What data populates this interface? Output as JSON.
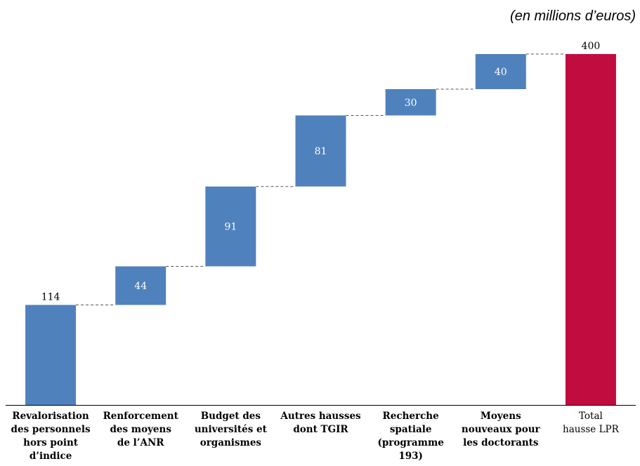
{
  "note": "(en millions d’euros)",
  "chart_data": {
    "type": "waterfall",
    "categories": [
      [
        "Revalorisation",
        "des personnels",
        "hors point",
        "d’indice"
      ],
      [
        "Renforcement",
        "des moyens",
        "de l’ANR"
      ],
      [
        "Budget des",
        "universités et",
        "organismes"
      ],
      [
        "Autres hausses",
        "dont TGIR"
      ],
      [
        "Recherche",
        "spatiale",
        "(programme",
        "193)"
      ],
      [
        "Moyens",
        "nouveaux pour",
        "les doctorants"
      ],
      [
        "Total",
        "hausse LPR"
      ]
    ],
    "values": [
      114,
      44,
      91,
      81,
      30,
      40,
      400
    ],
    "labels": [
      "114",
      "44",
      "91",
      "81",
      "30",
      "40",
      "400"
    ],
    "is_total": [
      false,
      false,
      false,
      false,
      false,
      false,
      true
    ],
    "colors": {
      "increment": "#4f81bd",
      "total": "#c00c3f",
      "connector": "#555555"
    },
    "ylim": [
      0,
      400
    ]
  }
}
